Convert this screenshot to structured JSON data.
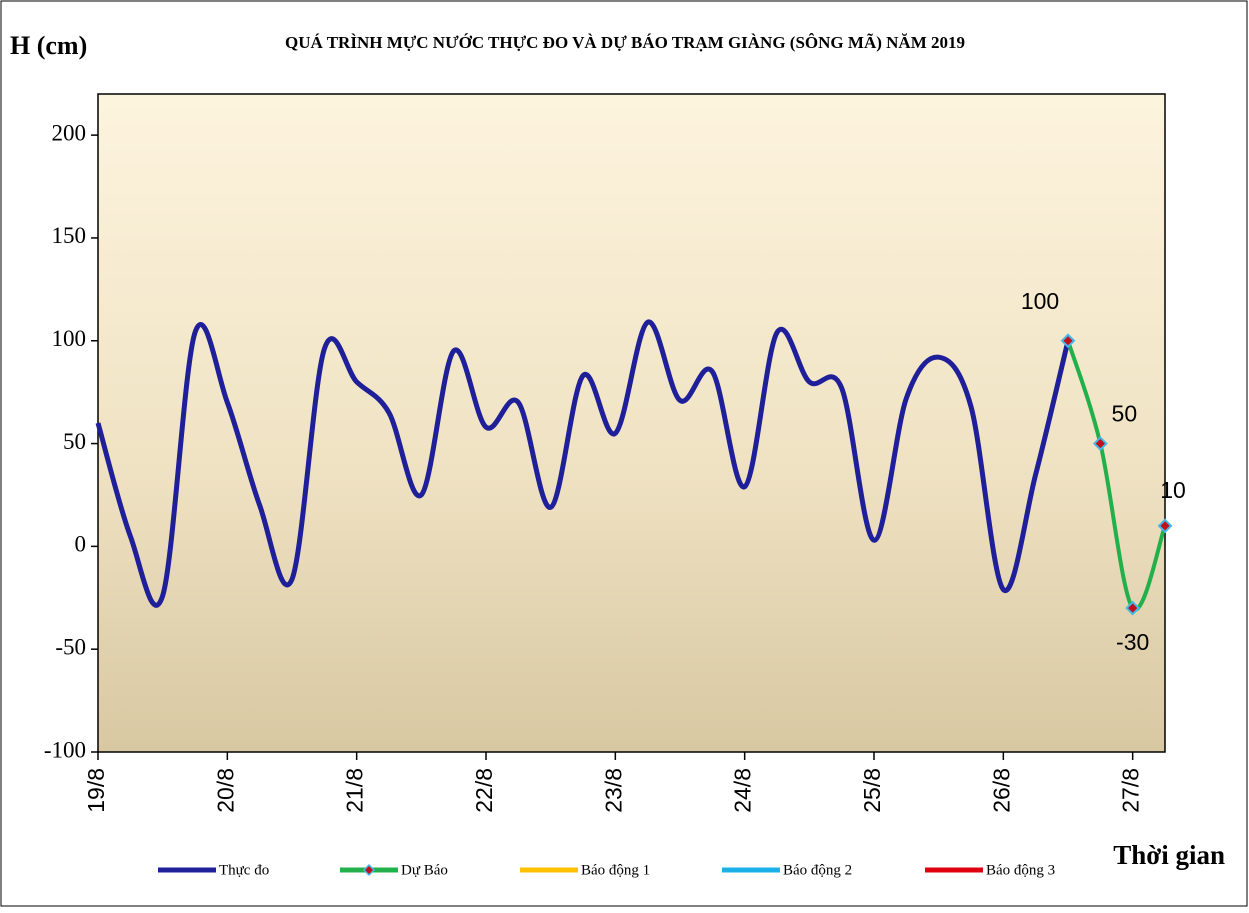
{
  "chart_data": {
    "type": "line",
    "title": "QUÁ TRÌNH  MỰC NƯỚC THỰC ĐO VÀ DỰ BÁO TRẠM GIÀNG (SÔNG MÃ) NĂM 2019",
    "y_label": "H (cm)",
    "x_label": "Thời gian",
    "xlim": [
      0,
      8.25
    ],
    "xticks": [
      {
        "value": 0,
        "label": "19/8"
      },
      {
        "value": 1,
        "label": "20/8"
      },
      {
        "value": 2,
        "label": "21/8"
      },
      {
        "value": 3,
        "label": "22/8"
      },
      {
        "value": 4,
        "label": "23/8"
      },
      {
        "value": 5,
        "label": "24/8"
      },
      {
        "value": 6,
        "label": "25/8"
      },
      {
        "value": 7,
        "label": "26/8"
      },
      {
        "value": 8,
        "label": "27/8"
      }
    ],
    "ylim": [
      -100,
      220
    ],
    "yticks": [
      -100,
      -50,
      0,
      50,
      100,
      150,
      200
    ],
    "series": [
      {
        "name": "Thực đo",
        "color": "#1f1f9a",
        "x": [
          0,
          0.25,
          0.5,
          0.75,
          1,
          1.25,
          1.5,
          1.75,
          2,
          2.25,
          2.5,
          2.75,
          3,
          3.25,
          3.5,
          3.75,
          4,
          4.25,
          4.5,
          4.75,
          5,
          5.25,
          5.5,
          5.75,
          6,
          6.25,
          6.5,
          6.75,
          7,
          7.25,
          7.5
        ],
        "values": [
          60,
          5,
          -24,
          104,
          70,
          20,
          -16,
          96,
          80,
          65,
          25,
          95,
          58,
          70,
          19,
          83,
          55,
          109,
          71,
          85,
          29,
          104,
          80,
          77,
          3,
          72,
          92,
          68,
          -21,
          35,
          100
        ]
      },
      {
        "name": "Dự Báo",
        "color": "#22b04b",
        "marker": "diamond",
        "marker_color": "#c0101a",
        "marker_edge": "#45b8e8",
        "x": [
          7.5,
          7.75,
          8,
          8.25
        ],
        "values": [
          100,
          50,
          -30,
          10
        ],
        "data_labels": true
      },
      {
        "name": "Báo động 1",
        "color": "#ffc000",
        "x": [],
        "values": []
      },
      {
        "name": "Báo động 2",
        "color": "#1cb0e8",
        "x": [],
        "values": []
      },
      {
        "name": "Báo động 3",
        "color": "#e00010",
        "x": [],
        "values": []
      }
    ]
  }
}
